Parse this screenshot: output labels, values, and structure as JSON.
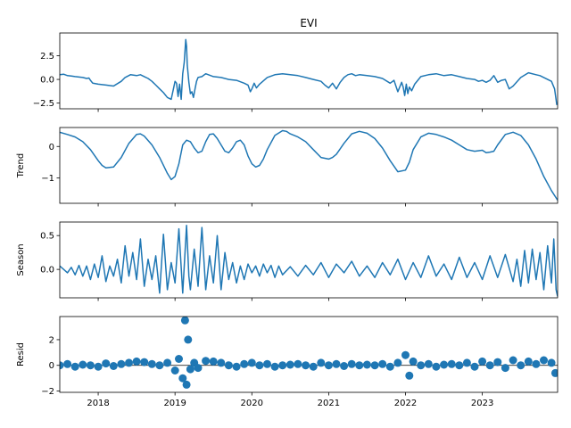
{
  "chart_data": [
    {
      "type": "line",
      "title": "EVI",
      "ylabel": "",
      "xlim": [
        2017.5,
        2023.98
      ],
      "ylim": [
        -3.1,
        4.9
      ],
      "yticks": [
        2.5,
        0.0,
        -2.5
      ],
      "ytick_labels": [
        "2.5",
        "0.0",
        "−2.5"
      ],
      "series": [
        {
          "x": [
            2017.5,
            2017.55,
            2017.6,
            2017.65,
            2017.7,
            2017.75,
            2017.8,
            2017.85,
            2017.88,
            2017.9,
            2017.93,
            2018.0,
            2018.1,
            2018.2,
            2018.3,
            2018.35,
            2018.42,
            2018.5,
            2018.55,
            2018.6,
            2018.65,
            2018.7,
            2018.75,
            2018.8,
            2018.85,
            2018.9,
            2018.95,
            2019.0,
            2019.02,
            2019.04,
            2019.06,
            2019.08,
            2019.1,
            2019.12,
            2019.14,
            2019.15,
            2019.16,
            2019.18,
            2019.2,
            2019.22,
            2019.24,
            2019.26,
            2019.28,
            2019.3,
            2019.35,
            2019.4,
            2019.5,
            2019.6,
            2019.7,
            2019.8,
            2019.9,
            2019.95,
            2019.98,
            2020.0,
            2020.03,
            2020.06,
            2020.1,
            2020.2,
            2020.3,
            2020.4,
            2020.5,
            2020.6,
            2020.7,
            2020.8,
            2020.9,
            2020.95,
            2021.0,
            2021.05,
            2021.1,
            2021.15,
            2021.2,
            2021.25,
            2021.3,
            2021.35,
            2021.4,
            2021.5,
            2021.6,
            2021.7,
            2021.8,
            2021.85,
            2021.9,
            2021.95,
            2021.97,
            2021.99,
            2022.01,
            2022.03,
            2022.05,
            2022.08,
            2022.12,
            2022.2,
            2022.3,
            2022.4,
            2022.5,
            2022.6,
            2022.7,
            2022.8,
            2022.9,
            2022.95,
            2023.0,
            2023.05,
            2023.1,
            2023.15,
            2023.2,
            2023.25,
            2023.3,
            2023.35,
            2023.4,
            2023.5,
            2023.6,
            2023.7,
            2023.75,
            2023.8,
            2023.85,
            2023.9,
            2023.94,
            2023.97
          ],
          "y": [
            0.5,
            0.55,
            0.4,
            0.35,
            0.3,
            0.25,
            0.2,
            0.1,
            0.15,
            -0.1,
            -0.4,
            -0.5,
            -0.6,
            -0.7,
            -0.2,
            0.2,
            0.5,
            0.4,
            0.5,
            0.3,
            0.1,
            -0.2,
            -0.6,
            -1.0,
            -1.4,
            -1.9,
            -2.1,
            -0.2,
            -0.4,
            -1.8,
            -0.5,
            -2.1,
            0.6,
            1.8,
            4.2,
            3.5,
            1.5,
            -0.3,
            -1.5,
            -1.3,
            -1.9,
            -1.0,
            -0.2,
            0.2,
            0.3,
            0.6,
            0.3,
            0.2,
            0.0,
            -0.1,
            -0.4,
            -0.6,
            -1.3,
            -1.0,
            -0.4,
            -0.9,
            -0.5,
            0.2,
            0.5,
            0.6,
            0.5,
            0.4,
            0.2,
            0.0,
            -0.2,
            -0.6,
            -0.9,
            -0.4,
            -1.0,
            -0.3,
            0.2,
            0.5,
            0.6,
            0.4,
            0.5,
            0.4,
            0.3,
            0.1,
            -0.4,
            -0.1,
            -1.3,
            -0.3,
            -0.8,
            -1.7,
            -0.5,
            -1.5,
            -0.8,
            -1.2,
            -0.5,
            0.3,
            0.5,
            0.6,
            0.4,
            0.5,
            0.3,
            0.1,
            0.0,
            -0.2,
            -0.1,
            -0.3,
            -0.1,
            0.4,
            -0.3,
            -0.1,
            0.0,
            -1.0,
            -0.7,
            0.2,
            0.7,
            0.5,
            0.4,
            0.2,
            0.0,
            -0.2,
            -1.0,
            -2.7
          ]
        }
      ]
    },
    {
      "type": "line",
      "title": "",
      "ylabel": "Trend",
      "xlim": [
        2017.5,
        2023.98
      ],
      "ylim": [
        -1.8,
        0.6
      ],
      "yticks": [
        0,
        -1
      ],
      "ytick_labels": [
        "0",
        "−1"
      ],
      "series": [
        {
          "x": [
            2017.5,
            2017.6,
            2017.7,
            2017.8,
            2017.9,
            2018.0,
            2018.05,
            2018.1,
            2018.2,
            2018.3,
            2018.4,
            2018.5,
            2018.55,
            2018.6,
            2018.7,
            2018.8,
            2018.9,
            2018.95,
            2019.0,
            2019.05,
            2019.1,
            2019.15,
            2019.2,
            2019.25,
            2019.3,
            2019.35,
            2019.4,
            2019.45,
            2019.5,
            2019.55,
            2019.6,
            2019.65,
            2019.7,
            2019.75,
            2019.8,
            2019.85,
            2019.9,
            2019.95,
            2020.0,
            2020.05,
            2020.1,
            2020.15,
            2020.2,
            2020.3,
            2020.4,
            2020.45,
            2020.5,
            2020.6,
            2020.7,
            2020.8,
            2020.9,
            2021.0,
            2021.05,
            2021.1,
            2021.2,
            2021.3,
            2021.4,
            2021.5,
            2021.6,
            2021.7,
            2021.8,
            2021.9,
            2022.0,
            2022.05,
            2022.1,
            2022.2,
            2022.3,
            2022.4,
            2022.5,
            2022.6,
            2022.7,
            2022.8,
            2022.9,
            2023.0,
            2023.05,
            2023.1,
            2023.15,
            2023.2,
            2023.3,
            2023.4,
            2023.5,
            2023.6,
            2023.7,
            2023.8,
            2023.9,
            2023.98
          ],
          "y": [
            0.45,
            0.38,
            0.3,
            0.15,
            -0.1,
            -0.45,
            -0.6,
            -0.68,
            -0.65,
            -0.35,
            0.1,
            0.38,
            0.4,
            0.33,
            0.05,
            -0.35,
            -0.85,
            -1.05,
            -0.95,
            -0.55,
            0.05,
            0.2,
            0.15,
            -0.05,
            -0.2,
            -0.15,
            0.15,
            0.38,
            0.4,
            0.25,
            0.05,
            -0.15,
            -0.2,
            -0.05,
            0.15,
            0.2,
            0.05,
            -0.3,
            -0.55,
            -0.65,
            -0.6,
            -0.4,
            -0.1,
            0.35,
            0.5,
            0.48,
            0.4,
            0.3,
            0.15,
            -0.1,
            -0.35,
            -0.4,
            -0.35,
            -0.25,
            0.1,
            0.4,
            0.48,
            0.42,
            0.25,
            -0.05,
            -0.45,
            -0.8,
            -0.75,
            -0.5,
            -0.1,
            0.3,
            0.42,
            0.38,
            0.3,
            0.2,
            0.05,
            -0.1,
            -0.15,
            -0.12,
            -0.2,
            -0.18,
            -0.15,
            0.05,
            0.38,
            0.45,
            0.35,
            0.05,
            -0.4,
            -0.95,
            -1.4,
            -1.7
          ]
        }
      ]
    },
    {
      "type": "line",
      "title": "",
      "ylabel": "Season",
      "xlim": [
        2017.5,
        2023.98
      ],
      "ylim": [
        -0.42,
        0.7
      ],
      "yticks": [
        0.5,
        0.0
      ],
      "ytick_labels": [
        "0.5",
        "0.0"
      ],
      "series": [
        {
          "x": [
            2017.5,
            2017.55,
            2017.6,
            2017.65,
            2017.7,
            2017.75,
            2017.8,
            2017.85,
            2017.9,
            2017.95,
            2018.0,
            2018.05,
            2018.1,
            2018.15,
            2018.2,
            2018.25,
            2018.3,
            2018.35,
            2018.4,
            2018.45,
            2018.5,
            2018.55,
            2018.6,
            2018.65,
            2018.7,
            2018.75,
            2018.8,
            2018.85,
            2018.9,
            2018.95,
            2019.0,
            2019.05,
            2019.1,
            2019.15,
            2019.18,
            2019.2,
            2019.25,
            2019.3,
            2019.35,
            2019.4,
            2019.45,
            2019.5,
            2019.55,
            2019.6,
            2019.65,
            2019.7,
            2019.75,
            2019.8,
            2019.85,
            2019.9,
            2019.95,
            2020.0,
            2020.05,
            2020.1,
            2020.15,
            2020.2,
            2020.25,
            2020.3,
            2020.35,
            2020.4,
            2020.5,
            2020.6,
            2020.7,
            2020.8,
            2020.9,
            2021.0,
            2021.1,
            2021.2,
            2021.3,
            2021.4,
            2021.5,
            2021.6,
            2021.7,
            2021.8,
            2021.9,
            2022.0,
            2022.1,
            2022.2,
            2022.3,
            2022.4,
            2022.5,
            2022.6,
            2022.7,
            2022.8,
            2022.9,
            2023.0,
            2023.1,
            2023.2,
            2023.3,
            2023.4,
            2023.45,
            2023.5,
            2023.55,
            2023.6,
            2023.65,
            2023.7,
            2023.75,
            2023.8,
            2023.85,
            2023.9,
            2023.93,
            2023.96,
            2023.98
          ],
          "y": [
            0.05,
            0.0,
            -0.05,
            0.03,
            -0.08,
            0.06,
            -0.1,
            0.05,
            -0.15,
            0.08,
            -0.12,
            0.2,
            -0.18,
            0.05,
            -0.1,
            0.15,
            -0.2,
            0.35,
            -0.1,
            0.25,
            -0.15,
            0.45,
            -0.25,
            0.15,
            -0.15,
            0.2,
            -0.35,
            0.52,
            -0.3,
            0.1,
            -0.2,
            0.6,
            -0.35,
            0.65,
            -0.1,
            -0.3,
            0.3,
            -0.25,
            0.62,
            -0.3,
            0.2,
            -0.2,
            0.5,
            -0.3,
            0.25,
            -0.15,
            0.1,
            -0.2,
            0.05,
            -0.15,
            0.08,
            -0.05,
            0.05,
            -0.1,
            0.08,
            -0.05,
            0.06,
            -0.12,
            0.05,
            -0.08,
            0.04,
            -0.1,
            0.06,
            -0.08,
            0.1,
            -0.12,
            0.08,
            -0.05,
            0.12,
            -0.1,
            0.05,
            -0.12,
            0.1,
            -0.08,
            0.15,
            -0.15,
            0.1,
            -0.12,
            0.2,
            -0.1,
            0.08,
            -0.15,
            0.18,
            -0.12,
            0.1,
            -0.15,
            0.2,
            -0.12,
            0.22,
            -0.18,
            0.15,
            -0.25,
            0.28,
            -0.2,
            0.3,
            -0.15,
            0.25,
            -0.3,
            0.35,
            -0.2,
            0.45,
            -0.3,
            -0.4
          ]
        }
      ]
    },
    {
      "type": "scatter",
      "title": "",
      "ylabel": "Resid",
      "xlim": [
        2017.5,
        2023.98
      ],
      "ylim": [
        -2.1,
        3.8
      ],
      "yticks": [
        2,
        0,
        -2
      ],
      "ytick_labels": [
        "2",
        "0",
        "−2"
      ],
      "xtick_labels": [
        "2018",
        "2019",
        "2020",
        "2021",
        "2022",
        "2023"
      ],
      "xtick_values": [
        2018,
        2019,
        2020,
        2021,
        2022,
        2023
      ],
      "series": [
        {
          "x": [
            2017.5,
            2017.6,
            2017.7,
            2017.8,
            2017.9,
            2018.0,
            2018.1,
            2018.2,
            2018.3,
            2018.4,
            2018.5,
            2018.6,
            2018.7,
            2018.8,
            2018.9,
            2019.0,
            2019.05,
            2019.1,
            2019.13,
            2019.15,
            2019.17,
            2019.2,
            2019.25,
            2019.3,
            2019.4,
            2019.5,
            2019.6,
            2019.7,
            2019.8,
            2019.9,
            2020.0,
            2020.1,
            2020.2,
            2020.3,
            2020.4,
            2020.5,
            2020.6,
            2020.7,
            2020.8,
            2020.9,
            2021.0,
            2021.1,
            2021.2,
            2021.3,
            2021.4,
            2021.5,
            2021.6,
            2021.7,
            2021.8,
            2021.9,
            2022.0,
            2022.05,
            2022.1,
            2022.2,
            2022.3,
            2022.4,
            2022.5,
            2022.6,
            2022.7,
            2022.8,
            2022.9,
            2023.0,
            2023.1,
            2023.2,
            2023.3,
            2023.4,
            2023.5,
            2023.6,
            2023.7,
            2023.8,
            2023.9,
            2023.95
          ],
          "y": [
            0.0,
            0.1,
            -0.1,
            0.05,
            0.0,
            -0.1,
            0.15,
            -0.05,
            0.1,
            0.2,
            0.3,
            0.25,
            0.1,
            0.0,
            0.2,
            -0.4,
            0.5,
            -1.0,
            3.5,
            -1.5,
            2.0,
            -0.3,
            0.2,
            -0.2,
            0.35,
            0.3,
            0.2,
            0.0,
            -0.1,
            0.1,
            0.2,
            0.0,
            0.1,
            -0.1,
            0.0,
            0.05,
            0.1,
            0.0,
            -0.1,
            0.2,
            0.0,
            0.1,
            -0.05,
            0.1,
            0.0,
            0.05,
            0.0,
            0.1,
            -0.1,
            0.2,
            0.8,
            -0.8,
            0.3,
            0.0,
            0.1,
            -0.1,
            0.05,
            0.1,
            0.0,
            0.2,
            -0.1,
            0.3,
            0.0,
            0.25,
            -0.2,
            0.4,
            0.0,
            0.3,
            0.1,
            0.4,
            0.2,
            -0.6
          ]
        }
      ]
    }
  ],
  "colors": {
    "series": "#1f77b4"
  }
}
